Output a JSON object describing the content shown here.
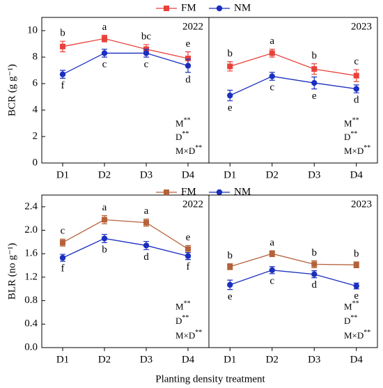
{
  "xlabel": "Planting density treatment",
  "chart_data": [
    {
      "type": "line",
      "panel": "2022",
      "ylabel": "BCR (g g⁻¹)",
      "categories": [
        "D1",
        "D2",
        "D3",
        "D4"
      ],
      "ylim": [
        0,
        11
      ],
      "yticks": [
        0,
        2,
        4,
        6,
        8,
        10
      ],
      "series": [
        {
          "name": "FM",
          "color": "#e8413a",
          "marker": "square",
          "values": [
            8.8,
            9.4,
            8.6,
            7.9
          ],
          "error": [
            0.4,
            0.25,
            0.35,
            0.5
          ],
          "letters": [
            "b",
            "a",
            "bc",
            "e"
          ]
        },
        {
          "name": "NM",
          "color": "#1a2fbf",
          "marker": "circle",
          "values": [
            6.7,
            8.3,
            8.3,
            7.35
          ],
          "error": [
            0.3,
            0.3,
            0.3,
            0.5
          ],
          "letters": [
            "f",
            "c",
            "c",
            "d"
          ]
        }
      ],
      "stats": [
        {
          "term": "M",
          "sig": "**"
        },
        {
          "term": "D",
          "sig": "**"
        },
        {
          "term": "M×D",
          "sig": "**"
        }
      ]
    },
    {
      "type": "line",
      "panel": "2023",
      "categories": [
        "D1",
        "D2",
        "D3",
        "D4"
      ],
      "ylim": [
        0,
        11
      ],
      "series": [
        {
          "name": "FM",
          "color": "#e8413a",
          "marker": "square",
          "values": [
            7.3,
            8.3,
            7.1,
            6.6
          ],
          "error": [
            0.35,
            0.3,
            0.4,
            0.45
          ],
          "letters": [
            "b",
            "a",
            "b",
            "c"
          ]
        },
        {
          "name": "NM",
          "color": "#1a2fbf",
          "marker": "circle",
          "values": [
            5.1,
            6.55,
            6.05,
            5.6
          ],
          "error": [
            0.4,
            0.3,
            0.45,
            0.3
          ],
          "letters": [
            "e",
            "c",
            "e",
            "d"
          ]
        }
      ],
      "stats": [
        {
          "term": "M",
          "sig": "**"
        },
        {
          "term": "D",
          "sig": "**"
        },
        {
          "term": "M×D",
          "sig": "**"
        }
      ]
    },
    {
      "type": "line",
      "panel": "2022",
      "ylabel": "BLR (no g⁻¹)",
      "categories": [
        "D1",
        "D2",
        "D3",
        "D4"
      ],
      "ylim": [
        0,
        2.6
      ],
      "yticks": [
        {
          "value": 0,
          "label": "0.0"
        },
        {
          "value": 0.4,
          "label": "0.4"
        },
        {
          "value": 0.8,
          "label": "0.8"
        },
        {
          "value": 1.2,
          "label": "1.2"
        },
        {
          "value": 1.6,
          "label": "1.6"
        },
        {
          "value": 2.0,
          "label": "2.0"
        },
        {
          "value": 2.4,
          "label": "2.4"
        }
      ],
      "series": [
        {
          "name": "FM",
          "color": "#b5613a",
          "marker": "square",
          "values": [
            1.79,
            2.18,
            2.13,
            1.68
          ],
          "error": [
            0.06,
            0.07,
            0.06,
            0.06
          ],
          "letters": [
            "c",
            "a",
            "a",
            "e"
          ]
        },
        {
          "name": "NM",
          "color": "#1a2fbf",
          "marker": "circle",
          "values": [
            1.53,
            1.86,
            1.74,
            1.56
          ],
          "error": [
            0.06,
            0.07,
            0.07,
            0.06
          ],
          "letters": [
            "f",
            "b",
            "d",
            "f"
          ]
        }
      ],
      "stats": [
        {
          "term": "M",
          "sig": "**"
        },
        {
          "term": "D",
          "sig": "**"
        },
        {
          "term": "M×D",
          "sig": "**"
        }
      ]
    },
    {
      "type": "line",
      "panel": "2023",
      "categories": [
        "D1",
        "D2",
        "D3",
        "D4"
      ],
      "ylim": [
        0,
        2.6
      ],
      "series": [
        {
          "name": "FM",
          "color": "#b5613a",
          "marker": "square",
          "values": [
            1.38,
            1.6,
            1.42,
            1.41
          ],
          "error": [
            0.05,
            0.05,
            0.06,
            0.05
          ],
          "letters": [
            "b",
            "a",
            "b",
            "b"
          ]
        },
        {
          "name": "NM",
          "color": "#1a2fbf",
          "marker": "circle",
          "values": [
            1.07,
            1.32,
            1.25,
            1.05
          ],
          "error": [
            0.08,
            0.06,
            0.06,
            0.05
          ],
          "letters": [
            "e",
            "c",
            "d",
            "e"
          ]
        }
      ],
      "stats": [
        {
          "term": "M",
          "sig": "**"
        },
        {
          "term": "D",
          "sig": "**"
        },
        {
          "term": "M×D",
          "sig": "**"
        }
      ]
    }
  ]
}
